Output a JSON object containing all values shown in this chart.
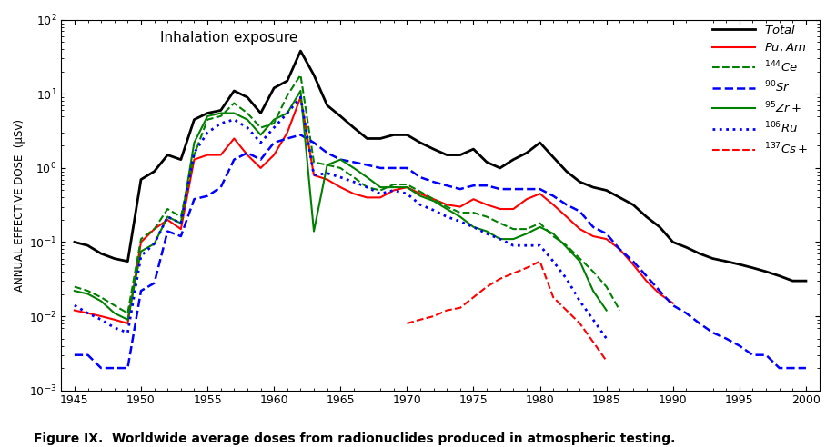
{
  "title": "Inhalation exposure",
  "ylabel": "ANNUAL EFFECTIVE DOSE  (μSv)",
  "xlabel": "",
  "caption": "Figure IX.  Worldwide average doses from radionuclides produced in atmospheric testing.",
  "background_color": "#f5f5f0",
  "years": [
    1945,
    1946,
    1947,
    1948,
    1949,
    1950,
    1951,
    1952,
    1953,
    1954,
    1955,
    1956,
    1957,
    1958,
    1959,
    1960,
    1961,
    1962,
    1963,
    1964,
    1965,
    1966,
    1967,
    1968,
    1969,
    1970,
    1971,
    1972,
    1973,
    1974,
    1975,
    1976,
    1977,
    1978,
    1979,
    1980,
    1981,
    1982,
    1983,
    1984,
    1985,
    1986,
    1987,
    1988,
    1989,
    1990,
    1991,
    1992,
    1993,
    1994,
    1995,
    1996,
    1997,
    1998,
    1999,
    2000
  ],
  "Total": [
    0.1,
    0.09,
    0.07,
    0.06,
    0.055,
    0.7,
    0.9,
    1.5,
    1.3,
    4.5,
    5.5,
    6.0,
    11.0,
    9.0,
    5.5,
    12.0,
    15.0,
    38.0,
    18.0,
    7.0,
    5.0,
    3.5,
    2.5,
    2.5,
    2.8,
    2.8,
    2.2,
    1.8,
    1.5,
    1.5,
    1.8,
    1.2,
    1.0,
    1.3,
    1.6,
    2.2,
    1.4,
    0.9,
    0.65,
    0.55,
    0.5,
    0.4,
    0.32,
    0.22,
    0.16,
    0.1,
    0.085,
    0.07,
    0.06,
    0.055,
    0.05,
    0.045,
    0.04,
    0.035,
    0.03,
    0.03
  ],
  "PuAm": [
    0.012,
    0.011,
    0.01,
    0.009,
    0.008,
    0.1,
    0.15,
    0.2,
    0.15,
    1.3,
    1.5,
    1.5,
    2.5,
    1.5,
    1.0,
    1.5,
    3.0,
    9.0,
    0.8,
    0.7,
    0.55,
    0.45,
    0.4,
    0.4,
    0.5,
    0.55,
    0.45,
    0.38,
    0.32,
    0.3,
    0.38,
    0.32,
    0.28,
    0.28,
    0.38,
    0.45,
    0.32,
    0.22,
    0.15,
    0.12,
    0.11,
    0.08,
    0.05,
    0.03,
    0.02,
    0.015,
    null,
    null,
    null,
    null,
    null,
    null,
    null,
    null,
    null,
    null
  ],
  "Ce144": [
    0.025,
    0.022,
    0.018,
    0.014,
    0.011,
    0.11,
    0.15,
    0.28,
    0.22,
    1.5,
    4.5,
    5.0,
    7.5,
    5.5,
    3.5,
    4.0,
    9.5,
    18.0,
    1.2,
    1.1,
    1.0,
    0.75,
    0.55,
    0.5,
    0.6,
    0.6,
    0.48,
    0.38,
    0.3,
    0.25,
    0.25,
    0.22,
    0.18,
    0.15,
    0.15,
    0.18,
    0.12,
    0.09,
    0.06,
    0.04,
    0.025,
    0.012,
    null,
    null,
    null,
    null,
    null,
    null,
    null,
    null,
    null,
    null,
    null,
    null,
    null,
    null
  ],
  "Sr90": [
    0.003,
    0.003,
    0.002,
    0.002,
    0.002,
    0.022,
    0.028,
    0.14,
    0.12,
    0.38,
    0.42,
    0.55,
    1.3,
    1.6,
    1.3,
    2.2,
    2.5,
    2.8,
    2.2,
    1.6,
    1.3,
    1.2,
    1.1,
    1.0,
    1.0,
    1.0,
    0.75,
    0.65,
    0.58,
    0.52,
    0.58,
    0.58,
    0.52,
    0.52,
    0.52,
    0.52,
    0.42,
    0.32,
    0.26,
    0.16,
    0.13,
    0.08,
    0.055,
    0.035,
    0.022,
    0.014,
    0.011,
    0.008,
    0.006,
    0.005,
    0.004,
    0.003,
    0.003,
    0.002,
    0.002,
    0.002
  ],
  "Zr95": [
    0.022,
    0.02,
    0.016,
    0.011,
    0.009,
    0.075,
    0.095,
    0.22,
    0.18,
    2.2,
    5.0,
    5.5,
    5.5,
    4.5,
    2.8,
    4.5,
    5.5,
    11.0,
    0.14,
    1.1,
    1.3,
    1.0,
    0.75,
    0.55,
    0.55,
    0.55,
    0.42,
    0.36,
    0.28,
    0.22,
    0.16,
    0.14,
    0.11,
    0.11,
    0.13,
    0.16,
    0.13,
    0.085,
    0.055,
    0.022,
    0.012,
    null,
    null,
    null,
    null,
    null,
    null,
    null,
    null,
    null,
    null,
    null,
    null,
    null,
    null,
    null
  ],
  "Ru106": [
    0.014,
    0.011,
    0.009,
    0.007,
    0.006,
    0.065,
    0.095,
    0.22,
    0.18,
    1.6,
    3.0,
    4.0,
    4.5,
    3.5,
    2.2,
    3.5,
    5.5,
    9.0,
    0.8,
    0.85,
    0.75,
    0.65,
    0.55,
    0.45,
    0.5,
    0.45,
    0.32,
    0.27,
    0.22,
    0.19,
    0.16,
    0.13,
    0.11,
    0.09,
    0.09,
    0.09,
    0.055,
    0.032,
    0.016,
    0.009,
    0.005,
    null,
    null,
    null,
    null,
    null,
    null,
    null,
    null,
    null,
    null,
    null,
    null,
    null,
    null,
    null
  ],
  "Cs137": [
    null,
    null,
    null,
    null,
    null,
    null,
    null,
    null,
    null,
    null,
    null,
    null,
    null,
    null,
    null,
    null,
    null,
    null,
    null,
    null,
    null,
    null,
    null,
    null,
    null,
    0.008,
    0.009,
    0.01,
    0.012,
    0.013,
    0.018,
    0.025,
    0.032,
    0.038,
    0.045,
    0.055,
    0.018,
    0.012,
    0.008,
    0.0045,
    0.0025,
    null,
    null,
    null,
    null,
    null,
    null,
    null,
    null,
    null,
    null,
    null,
    null,
    null,
    null,
    null
  ]
}
